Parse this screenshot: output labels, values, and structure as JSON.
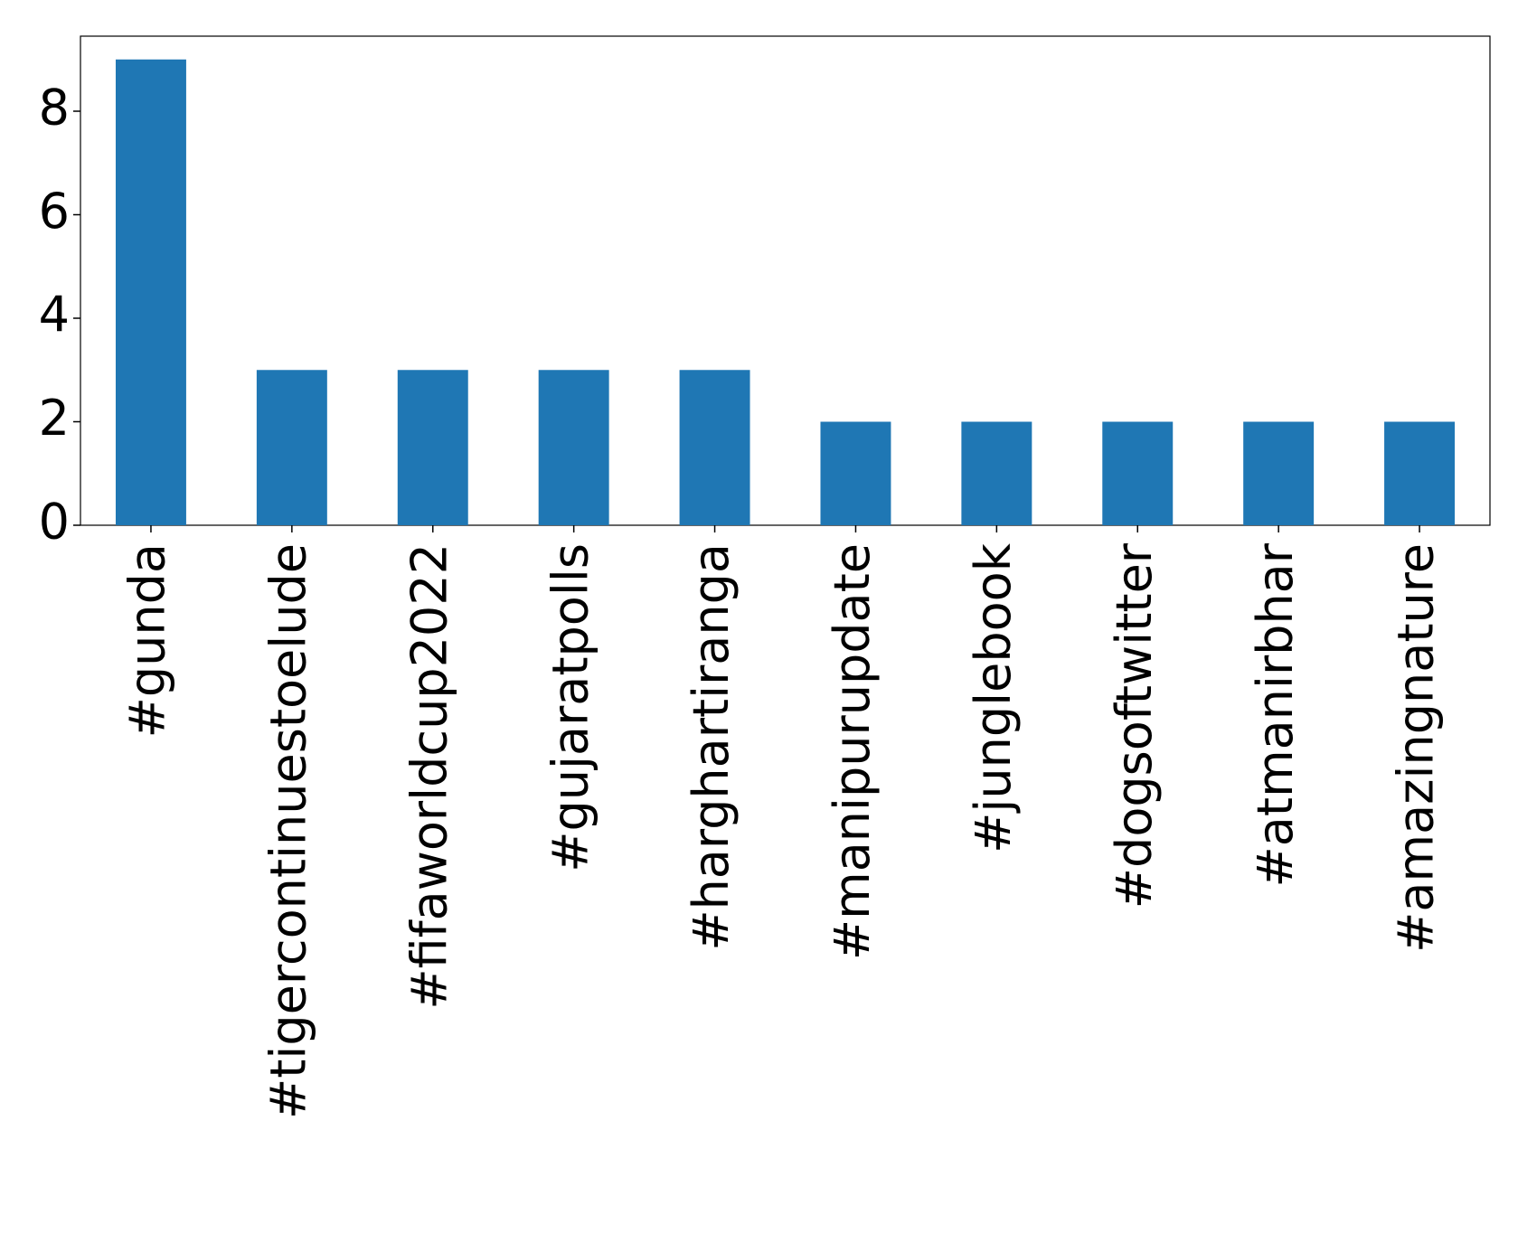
{
  "chart_data": {
    "type": "bar",
    "categories": [
      "#gunda",
      "#tigercontinuestoelude",
      "#fifaworldcup2022",
      "#gujaratpolls",
      "#harghartiranga",
      "#manipurupdate",
      "#junglebook",
      "#dogsoftwitter",
      "#atmanirbhar",
      "#amazingnature"
    ],
    "values": [
      9,
      3,
      3,
      3,
      3,
      2,
      2,
      2,
      2,
      2
    ],
    "color": "#1f77b4",
    "ylim": [
      0,
      9.45
    ],
    "yticks": [
      0,
      2,
      4,
      6,
      8
    ],
    "grid": false
  }
}
